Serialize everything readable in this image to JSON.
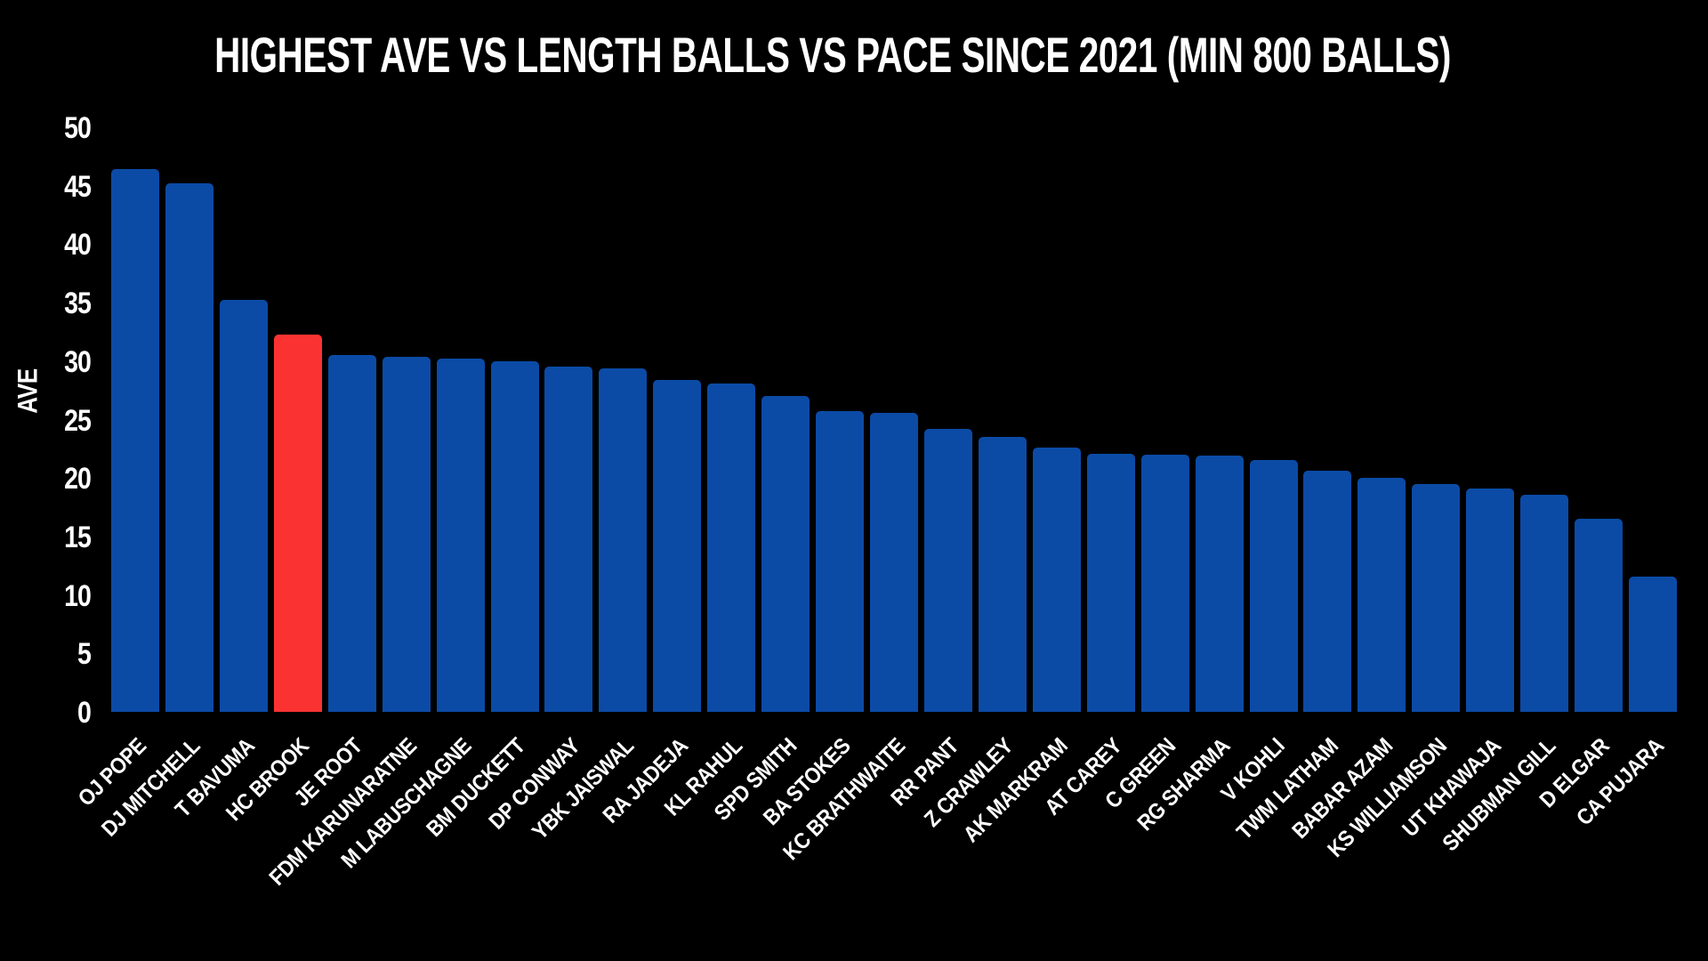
{
  "title": "HIGHEST AVE VS LENGTH BALLS VS PACE SINCE 2021 (MIN 800 BALLS)",
  "chart_data": {
    "type": "bar",
    "title": "HIGHEST AVE VS LENGTH BALLS VS PACE SINCE 2021 (MIN 800 BALLS)",
    "xlabel": "",
    "ylabel": "AVE",
    "ylim": [
      0,
      50
    ],
    "yticks": [
      0,
      5,
      10,
      15,
      20,
      25,
      30,
      35,
      40,
      45,
      50
    ],
    "grid": false,
    "legend": "none",
    "background_color": "#000000",
    "bar_color": "#0B4BA6",
    "highlight_color": "#FA3332",
    "highlight_category": "HC BROOK",
    "text_color": "#FFFFFF",
    "categories": [
      "OJ POPE",
      "DJ MITCHELL",
      "T BAVUMA",
      "HC BROOK",
      "JE ROOT",
      "FDM KARUNARATNE",
      "M LABUSCHAGNE",
      "BM DUCKETT",
      "DP CONWAY",
      "YBK JAISWAL",
      "RA JADEJA",
      "KL RAHUL",
      "SPD SMITH",
      "BA STOKES",
      "KC BRATHWAITE",
      "RR PANT",
      "Z CRAWLEY",
      "AK MARKRAM",
      "AT CAREY",
      "C GREEN",
      "RG SHARMA",
      "V KOHLI",
      "TWM LATHAM",
      "BABAR AZAM",
      "KS WILLIAMSON",
      "UT KHAWAJA",
      "SHUBMAN GILL",
      "D ELGAR",
      "CA PUJARA"
    ],
    "values": [
      46.4,
      45.2,
      35.2,
      32.3,
      30.5,
      30.4,
      30.2,
      30.0,
      29.5,
      29.4,
      28.4,
      28.1,
      27.0,
      25.7,
      25.6,
      24.2,
      23.5,
      22.6,
      22.1,
      22.0,
      21.9,
      21.5,
      20.6,
      20.0,
      19.5,
      19.1,
      18.6,
      16.5,
      11.6
    ]
  }
}
